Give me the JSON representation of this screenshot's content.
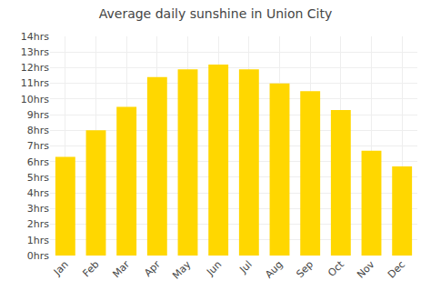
{
  "chart_data": {
    "type": "bar",
    "title": "Average daily sunshine in Union City",
    "categories": [
      "Jan",
      "Feb",
      "Mar",
      "Apr",
      "May",
      "Jun",
      "Jul",
      "Aug",
      "Sep",
      "Oct",
      "Nov",
      "Dec"
    ],
    "values": [
      6.3,
      8.0,
      9.5,
      11.4,
      11.9,
      12.2,
      11.9,
      11.0,
      10.5,
      9.3,
      6.7,
      5.7
    ],
    "color": "#FFD700",
    "ylim": [
      0,
      14
    ],
    "yticks": [
      {
        "value": 0,
        "label": "0hrs"
      },
      {
        "value": 1,
        "label": "1hrs"
      },
      {
        "value": 2,
        "label": "2hrs"
      },
      {
        "value": 3,
        "label": "3hrs"
      },
      {
        "value": 4,
        "label": "4hrs"
      },
      {
        "value": 5,
        "label": "5hrs"
      },
      {
        "value": 6,
        "label": "6hrs"
      },
      {
        "value": 7,
        "label": "7hrs"
      },
      {
        "value": 8,
        "label": "8hrs"
      },
      {
        "value": 9,
        "label": "9hrs"
      },
      {
        "value": 10,
        "label": "10hrs"
      },
      {
        "value": 11,
        "label": "11hrs"
      },
      {
        "value": 12,
        "label": "12hrs"
      },
      {
        "value": 13,
        "label": "13hrs"
      },
      {
        "value": 14,
        "label": "14hrs"
      }
    ],
    "grid": true
  }
}
